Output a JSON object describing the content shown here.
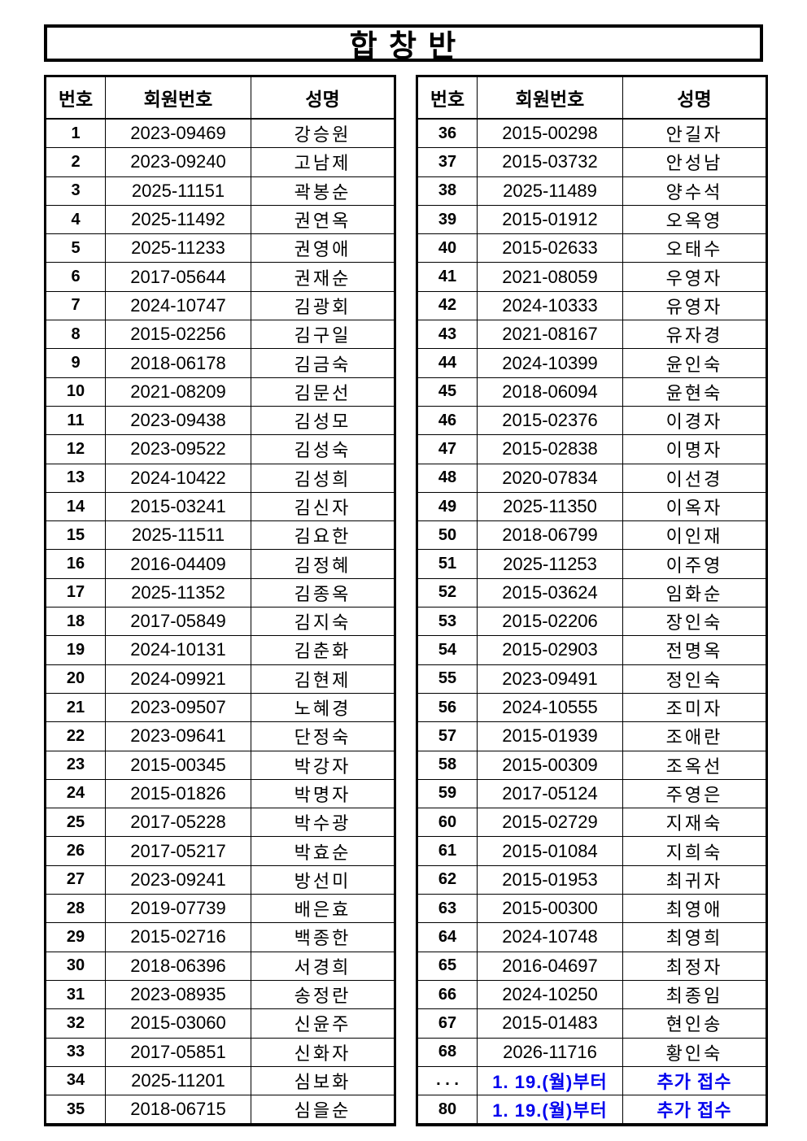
{
  "title": "합 창 반",
  "colors": {
    "text": "#000000",
    "border": "#000000",
    "highlight_blue": "#0000ee"
  },
  "columns": {
    "no": "번호",
    "member_no": "회원번호",
    "name": "성명"
  },
  "left_table": {
    "headers": [
      "번호",
      "회원번호",
      "성명"
    ],
    "rows": [
      {
        "no": "1",
        "member_no": "2023-09469",
        "name": "강승원"
      },
      {
        "no": "2",
        "member_no": "2023-09240",
        "name": "고남제"
      },
      {
        "no": "3",
        "member_no": "2025-11151",
        "name": "곽봉순"
      },
      {
        "no": "4",
        "member_no": "2025-11492",
        "name": "권연옥"
      },
      {
        "no": "5",
        "member_no": "2025-11233",
        "name": "권영애"
      },
      {
        "no": "6",
        "member_no": "2017-05644",
        "name": "권재순"
      },
      {
        "no": "7",
        "member_no": "2024-10747",
        "name": "김광회"
      },
      {
        "no": "8",
        "member_no": "2015-02256",
        "name": "김구일"
      },
      {
        "no": "9",
        "member_no": "2018-06178",
        "name": "김금숙"
      },
      {
        "no": "10",
        "member_no": "2021-08209",
        "name": "김문선"
      },
      {
        "no": "11",
        "member_no": "2023-09438",
        "name": "김성모"
      },
      {
        "no": "12",
        "member_no": "2023-09522",
        "name": "김성숙"
      },
      {
        "no": "13",
        "member_no": "2024-10422",
        "name": "김성희"
      },
      {
        "no": "14",
        "member_no": "2015-03241",
        "name": "김신자"
      },
      {
        "no": "15",
        "member_no": "2025-11511",
        "name": "김요한"
      },
      {
        "no": "16",
        "member_no": "2016-04409",
        "name": "김정혜"
      },
      {
        "no": "17",
        "member_no": "2025-11352",
        "name": "김종옥"
      },
      {
        "no": "18",
        "member_no": "2017-05849",
        "name": "김지숙"
      },
      {
        "no": "19",
        "member_no": "2024-10131",
        "name": "김춘화"
      },
      {
        "no": "20",
        "member_no": "2024-09921",
        "name": "김현제"
      },
      {
        "no": "21",
        "member_no": "2023-09507",
        "name": "노혜경"
      },
      {
        "no": "22",
        "member_no": "2023-09641",
        "name": "단정숙"
      },
      {
        "no": "23",
        "member_no": "2015-00345",
        "name": "박강자"
      },
      {
        "no": "24",
        "member_no": "2015-01826",
        "name": "박명자"
      },
      {
        "no": "25",
        "member_no": "2017-05228",
        "name": "박수광"
      },
      {
        "no": "26",
        "member_no": "2017-05217",
        "name": "박효순"
      },
      {
        "no": "27",
        "member_no": "2023-09241",
        "name": "방선미"
      },
      {
        "no": "28",
        "member_no": "2019-07739",
        "name": "배은효"
      },
      {
        "no": "29",
        "member_no": "2015-02716",
        "name": "백종한"
      },
      {
        "no": "30",
        "member_no": "2018-06396",
        "name": "서경희"
      },
      {
        "no": "31",
        "member_no": "2023-08935",
        "name": "송정란"
      },
      {
        "no": "32",
        "member_no": "2015-03060",
        "name": "신윤주"
      },
      {
        "no": "33",
        "member_no": "2017-05851",
        "name": "신화자"
      },
      {
        "no": "34",
        "member_no": "2025-11201",
        "name": "심보화"
      },
      {
        "no": "35",
        "member_no": "2018-06715",
        "name": "심을순"
      }
    ]
  },
  "right_table": {
    "headers": [
      "번호",
      "회원번호",
      "성명"
    ],
    "rows": [
      {
        "no": "36",
        "member_no": "2015-00298",
        "name": "안길자"
      },
      {
        "no": "37",
        "member_no": "2015-03732",
        "name": "안성남"
      },
      {
        "no": "38",
        "member_no": "2025-11489",
        "name": "양수석"
      },
      {
        "no": "39",
        "member_no": "2015-01912",
        "name": "오옥영"
      },
      {
        "no": "40",
        "member_no": "2015-02633",
        "name": "오태수"
      },
      {
        "no": "41",
        "member_no": "2021-08059",
        "name": "우영자"
      },
      {
        "no": "42",
        "member_no": "2024-10333",
        "name": "유영자"
      },
      {
        "no": "43",
        "member_no": "2021-08167",
        "name": "유자경"
      },
      {
        "no": "44",
        "member_no": "2024-10399",
        "name": "윤인숙"
      },
      {
        "no": "45",
        "member_no": "2018-06094",
        "name": "윤현숙"
      },
      {
        "no": "46",
        "member_no": "2015-02376",
        "name": "이경자"
      },
      {
        "no": "47",
        "member_no": "2015-02838",
        "name": "이명자"
      },
      {
        "no": "48",
        "member_no": "2020-07834",
        "name": "이선경"
      },
      {
        "no": "49",
        "member_no": "2025-11350",
        "name": "이옥자"
      },
      {
        "no": "50",
        "member_no": "2018-06799",
        "name": "이인재"
      },
      {
        "no": "51",
        "member_no": "2025-11253",
        "name": "이주영"
      },
      {
        "no": "52",
        "member_no": "2015-03624",
        "name": "임화순"
      },
      {
        "no": "53",
        "member_no": "2015-02206",
        "name": "장인숙"
      },
      {
        "no": "54",
        "member_no": "2015-02903",
        "name": "전명옥"
      },
      {
        "no": "55",
        "member_no": "2023-09491",
        "name": "정인숙"
      },
      {
        "no": "56",
        "member_no": "2024-10555",
        "name": "조미자"
      },
      {
        "no": "57",
        "member_no": "2015-01939",
        "name": "조애란"
      },
      {
        "no": "58",
        "member_no": "2015-00309",
        "name": "조옥선"
      },
      {
        "no": "59",
        "member_no": "2017-05124",
        "name": "주영은"
      },
      {
        "no": "60",
        "member_no": "2015-02729",
        "name": "지재숙"
      },
      {
        "no": "61",
        "member_no": "2015-01084",
        "name": "지희숙"
      },
      {
        "no": "62",
        "member_no": "2015-01953",
        "name": "최귀자"
      },
      {
        "no": "63",
        "member_no": "2015-00300",
        "name": "최영애"
      },
      {
        "no": "64",
        "member_no": "2024-10748",
        "name": "최영희"
      },
      {
        "no": "65",
        "member_no": "2016-04697",
        "name": "최정자"
      },
      {
        "no": "66",
        "member_no": "2024-10250",
        "name": "최종임"
      },
      {
        "no": "67",
        "member_no": "2015-01483",
        "name": "현인송"
      },
      {
        "no": "68",
        "member_no": "2026-11716",
        "name": "황인숙"
      },
      {
        "no": ". . .",
        "member_no": "1.  19.(월)부터",
        "name": "추가  접수",
        "highlight": true
      },
      {
        "no": "80",
        "member_no": "1.  19.(월)부터",
        "name": "추가  접수",
        "highlight": true
      }
    ]
  }
}
